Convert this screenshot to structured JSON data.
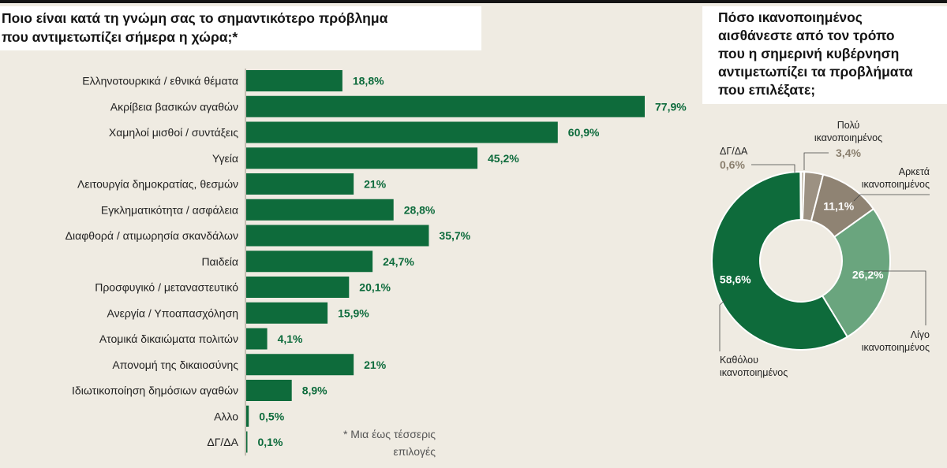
{
  "titles": {
    "bar": "Ποιο είναι κατά τη γνώμη σας το σημαντικότερο πρόβλημα\nπου αντιμετωπίζει σήμερα η χώρα;*",
    "donut": "Πόσο ικανοποιημένος\nαισθάνεστε από τον τρόπο\nπου η σημερινή κυβέρνηση\nαντιμετωπίζει τα προβλήματα\nπου επιλέξατε;"
  },
  "footnote": "* Μια έως τέσσερις\nεπιλογές",
  "colors": {
    "bar": "#0e6b3b",
    "background": "#efebe2",
    "value_text": "#0d6b3c",
    "donut": [
      "#0e6b3b",
      "#6aa57e",
      "#8f8373",
      "#9c9182",
      "#c9c1b3"
    ]
  },
  "chart_data": [
    {
      "type": "bar",
      "orientation": "horizontal",
      "categories": [
        "Ελληνοτουρκικά / εθνικά θέματα",
        "Ακρίβεια βασικών αγαθών",
        "Χαμηλοί μισθοί / συντάξεις",
        "Υγεία",
        "Λειτουργία δημοκρατίας, θεσμών",
        "Εγκληματικότητα / ασφάλεια",
        "Διαφθορά / ατιμωρησία σκανδάλων",
        "Παιδεία",
        "Προσφυγικό / μεταναστευτικό",
        "Ανεργία / Υποαπασχόληση",
        "Ατομικά δικαιώματα πολιτών",
        "Απονομή της δικαιοσύνης",
        "Ιδιωτικοποίηση δημόσιων αγαθών",
        "Αλλο",
        "ΔΓ/ΔΑ"
      ],
      "values": [
        18.8,
        77.9,
        60.9,
        45.2,
        21,
        28.8,
        35.7,
        24.7,
        20.1,
        15.9,
        4.1,
        21,
        8.9,
        0.5,
        0.1
      ],
      "value_labels": [
        "18,8%",
        "77,9%",
        "60,9%",
        "45,2%",
        "21%",
        "28,8%",
        "35,7%",
        "24,7%",
        "20,1%",
        "15,9%",
        "4,1%",
        "21%",
        "8,9%",
        "0,5%",
        "0,1%"
      ],
      "xlim": [
        0,
        80
      ],
      "grid": false
    },
    {
      "type": "pie",
      "donut": true,
      "slices": [
        {
          "label": "Καθόλου\nικανοποιημένος",
          "value": 58.6,
          "value_label": "58,6%"
        },
        {
          "label": "Λίγο\nικανοποιημένος",
          "value": 26.2,
          "value_label": "26,2%"
        },
        {
          "label": "Αρκετά\nικανοποιημένος",
          "value": 11.1,
          "value_label": "11,1%"
        },
        {
          "label": "Πολύ\nικανοποιημένος",
          "value": 3.4,
          "value_label": "3,4%"
        },
        {
          "label": "ΔΓ/ΔΑ",
          "value": 0.6,
          "value_label": "0,6%"
        }
      ]
    }
  ]
}
